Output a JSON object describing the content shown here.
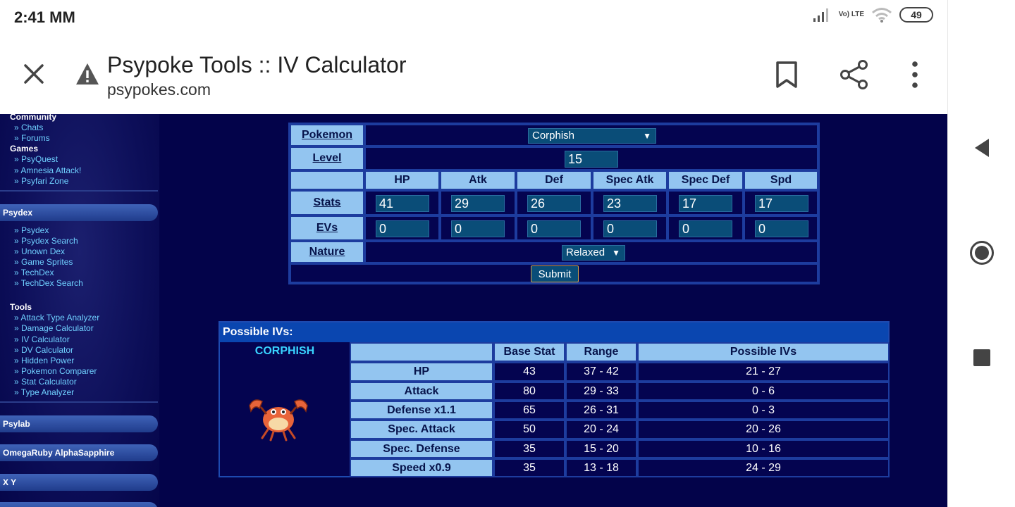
{
  "status": {
    "time": "2:41 MM",
    "network": "Vo) LTE",
    "battery": "49"
  },
  "browser": {
    "title": "Psypoke Tools :: IV Calculator",
    "url": "psypokes.com"
  },
  "sidebar": {
    "community": {
      "heading": "Community",
      "links": [
        "» Chats",
        "» Forums"
      ]
    },
    "games": {
      "heading": "Games",
      "links": [
        "» PsyQuest",
        "» Amnesia Attack!",
        "» Psyfari Zone"
      ]
    },
    "psydex_bar": "Psydex",
    "psydex_links": [
      "» Psydex",
      "» Psydex Search",
      "» Unown Dex",
      "» Game Sprites",
      "» TechDex",
      "» TechDex Search"
    ],
    "tools": {
      "heading": "Tools",
      "links": [
        "» Attack Type Analyzer",
        "» Damage Calculator",
        "» IV Calculator",
        "» DV Calculator",
        "» Hidden Power",
        "» Pokemon Comparer",
        "» Stat Calculator",
        "» Type Analyzer"
      ]
    },
    "bars": [
      "Psylab",
      "OmegaRuby AlphaSapphire",
      "X Y"
    ]
  },
  "form": {
    "pokemon_label": "Pokemon",
    "pokemon_value": "Corphish",
    "level_label": "Level",
    "level_value": "15",
    "stat_headers": [
      "HP",
      "Atk",
      "Def",
      "Spec Atk",
      "Spec Def",
      "Spd"
    ],
    "stats_label": "Stats",
    "stats": [
      "41",
      "29",
      "26",
      "23",
      "17",
      "17"
    ],
    "evs_label": "EVs",
    "evs": [
      "0",
      "0",
      "0",
      "0",
      "0",
      "0"
    ],
    "nature_label": "Nature",
    "nature_value": "Relaxed",
    "submit_label": "Submit",
    "dropdown_arrow": "▼"
  },
  "results": {
    "title": "Possible IVs:",
    "pokemon_name": "CORPHISH",
    "headers": [
      "Base Stat",
      "Range",
      "Possible IVs"
    ],
    "rows": [
      {
        "stat": "HP",
        "base": "43",
        "range": "37 - 42",
        "ivs": "21 - 27"
      },
      {
        "stat": "Attack",
        "base": "80",
        "range": "29 - 33",
        "ivs": "0 - 6"
      },
      {
        "stat": "Defense x1.1",
        "base": "65",
        "range": "26 - 31",
        "ivs": "0 - 3"
      },
      {
        "stat": "Spec. Attack",
        "base": "50",
        "range": "20 - 24",
        "ivs": "20 - 26"
      },
      {
        "stat": "Spec. Defense",
        "base": "35",
        "range": "15 - 20",
        "ivs": "10 - 16"
      },
      {
        "stat": "Speed x0.9",
        "base": "35",
        "range": "13 - 18",
        "ivs": "24 - 29"
      }
    ]
  },
  "colors": {
    "page_bg": "#03034a",
    "header_cell": "#93c5f0",
    "input_bg": "#0a4d78",
    "accent_name": "#39d3ff"
  },
  "icons": [
    "close-icon",
    "warning-icon",
    "bookmark-icon",
    "share-icon",
    "more-vert-icon",
    "back-icon",
    "home-icon",
    "recents-icon",
    "signal-icon",
    "wifi-icon",
    "corphish-sprite"
  ]
}
